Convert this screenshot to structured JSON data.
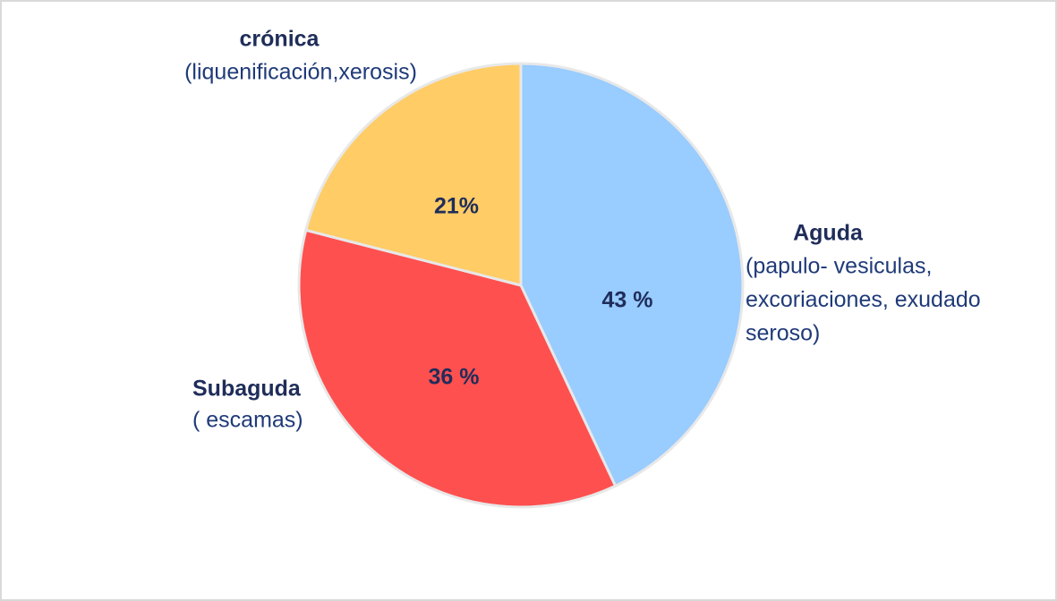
{
  "chart_data": {
    "type": "pie",
    "categories": [
      "Aguda",
      "Subaguda",
      "crónica"
    ],
    "descriptions": [
      [
        "(papulo- vesiculas,",
        "excoriaciones, exudado",
        "seroso)"
      ],
      [
        "( escamas)"
      ],
      [
        "(liquenificación,xerosis)"
      ]
    ],
    "values": [
      43,
      36,
      21
    ],
    "value_labels": [
      "43 %",
      "36 %",
      "21%"
    ],
    "colors": [
      "#99ccff",
      "#ff5050",
      "#ffcc66"
    ]
  }
}
